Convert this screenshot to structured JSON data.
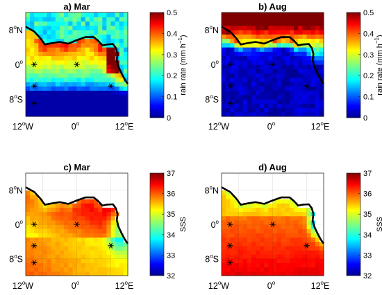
{
  "chart_data": [
    {
      "type": "heatmap",
      "title": "a) Mar",
      "variable": "rain",
      "x_ticks": [
        "12",
        "0",
        "12"
      ],
      "x_tick_suffix": [
        "W",
        "",
        "E"
      ],
      "y_ticks": [
        "8",
        "0",
        "8"
      ],
      "y_tick_suffix": [
        "N",
        "",
        "S"
      ],
      "xlim": [
        -12,
        12
      ],
      "ylim": [
        -12,
        12
      ],
      "colorbar": {
        "min": 0,
        "max": 0.5,
        "ticks": [
          "0.5",
          "0.4",
          "0.3",
          "0.2",
          "0.1",
          "0"
        ],
        "label": "rain rate (mm h",
        "label_sup": "−1",
        "label_end": ")",
        "colormap": "jet"
      },
      "stations": [
        [
          -10,
          0
        ],
        [
          0,
          0
        ],
        [
          -10,
          -5
        ],
        [
          -10,
          -9
        ],
        [
          8,
          -5
        ]
      ]
    },
    {
      "type": "heatmap",
      "title": "b) Aug",
      "variable": "rain",
      "x_ticks": [
        "12",
        "0",
        "12"
      ],
      "x_tick_suffix": [
        "W",
        "",
        "E"
      ],
      "y_ticks": [
        "8",
        "0",
        "8"
      ],
      "y_tick_suffix": [
        "N",
        "",
        "S"
      ],
      "xlim": [
        -12,
        12
      ],
      "ylim": [
        -12,
        12
      ],
      "colorbar": {
        "min": 0,
        "max": 0.5,
        "ticks": [
          "0.5",
          "0.4",
          "0.3",
          "0.2",
          "0.1",
          "0"
        ],
        "label": "rain rate (mm h",
        "label_sup": "−1",
        "label_end": ")",
        "colormap": "jet"
      },
      "stations": [
        [
          -10,
          0
        ],
        [
          0,
          0
        ],
        [
          -10,
          -5
        ],
        [
          -10,
          -9
        ],
        [
          8,
          -5
        ]
      ]
    },
    {
      "type": "heatmap",
      "title": "c) Mar",
      "variable": "sss",
      "x_ticks": [
        "12",
        "0",
        "12"
      ],
      "x_tick_suffix": [
        "W",
        "",
        "E"
      ],
      "y_ticks": [
        "8",
        "0",
        "8"
      ],
      "y_tick_suffix": [
        "N",
        "",
        "S"
      ],
      "xlim": [
        -12,
        12
      ],
      "ylim": [
        -12,
        12
      ],
      "colorbar": {
        "min": 32,
        "max": 37,
        "ticks": [
          "37",
          "36",
          "35",
          "34",
          "33",
          "32"
        ],
        "label": "SSS",
        "label_sup": "",
        "label_end": "",
        "colormap": "jet"
      },
      "stations": [
        [
          -10,
          0
        ],
        [
          0,
          0
        ],
        [
          -10,
          -5
        ],
        [
          -10,
          -9
        ],
        [
          8,
          -5
        ]
      ]
    },
    {
      "type": "heatmap",
      "title": "d) Aug",
      "variable": "sss",
      "x_ticks": [
        "12",
        "0",
        "12"
      ],
      "x_tick_suffix": [
        "W",
        "",
        "E"
      ],
      "y_ticks": [
        "8",
        "0",
        "8"
      ],
      "y_tick_suffix": [
        "N",
        "",
        "S"
      ],
      "xlim": [
        -12,
        12
      ],
      "ylim": [
        -12,
        12
      ],
      "colorbar": {
        "min": 32,
        "max": 37,
        "ticks": [
          "37",
          "36",
          "35",
          "34",
          "33",
          "32"
        ],
        "label": "SSS",
        "label_sup": "",
        "label_end": "",
        "colormap": "jet"
      },
      "stations": [
        [
          -10,
          0
        ],
        [
          0,
          0
        ],
        [
          -10,
          -5
        ],
        [
          -10,
          -9
        ],
        [
          8,
          -5
        ]
      ]
    }
  ],
  "colors": {
    "coastline": "#000000",
    "background": "#ffffff"
  }
}
